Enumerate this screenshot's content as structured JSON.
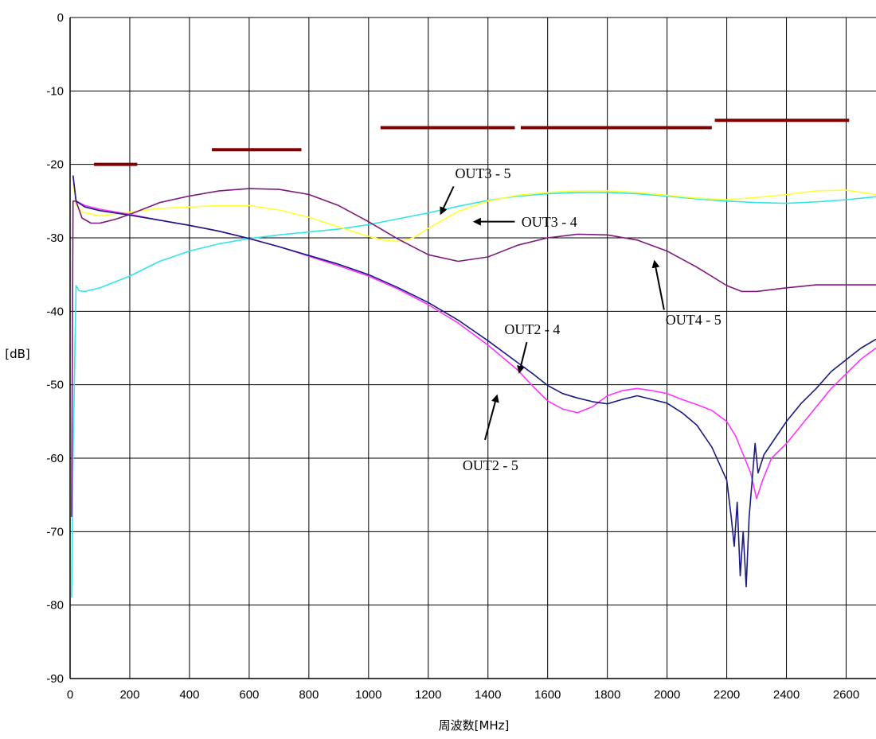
{
  "chart_data": {
    "type": "line",
    "title": "",
    "xlabel": "周波数[MHz]",
    "ylabel": "[dB]",
    "xlim": [
      0,
      2700
    ],
    "ylim": [
      -90,
      0
    ],
    "x_ticks": [
      0,
      200,
      400,
      600,
      800,
      1000,
      1200,
      1400,
      1600,
      1800,
      2000,
      2200,
      2400,
      2600
    ],
    "y_ticks": [
      0,
      -10,
      -20,
      -30,
      -40,
      -50,
      -60,
      -70,
      -80,
      -90
    ],
    "grid": true,
    "legend": "none",
    "series": [
      {
        "name": "OUT3 - 5",
        "color": "#33e6e6",
        "x": [
          5,
          10,
          20,
          30,
          50,
          100,
          200,
          300,
          400,
          500,
          600,
          700,
          800,
          900,
          1000,
          1100,
          1200,
          1300,
          1400,
          1500,
          1600,
          1700,
          1800,
          1900,
          2000,
          2100,
          2200,
          2300,
          2400,
          2500,
          2600,
          2700
        ],
        "y": [
          -79,
          -60,
          -36.5,
          -37.2,
          -37.3,
          -36.8,
          -35.2,
          -33.2,
          -31.8,
          -30.8,
          -30.1,
          -29.6,
          -29.2,
          -28.8,
          -28.2,
          -27.4,
          -26.6,
          -25.7,
          -24.9,
          -24.3,
          -24,
          -23.8,
          -23.8,
          -24,
          -24.3,
          -24.7,
          -25,
          -25.2,
          -25.3,
          -25.1,
          -24.8,
          -24.4
        ]
      },
      {
        "name": "OUT3 - 4",
        "color": "#ffff33",
        "x": [
          10,
          20,
          40,
          100,
          150,
          200,
          300,
          400,
          500,
          600,
          700,
          800,
          900,
          1000,
          1050,
          1100,
          1150,
          1200,
          1300,
          1400,
          1500,
          1600,
          1700,
          1800,
          1900,
          2000,
          2100,
          2200,
          2300,
          2400,
          2500,
          2600,
          2700
        ],
        "y": [
          -22.5,
          -25.5,
          -26.5,
          -27,
          -26.8,
          -26.5,
          -26,
          -25.8,
          -25.6,
          -25.6,
          -26.2,
          -27.2,
          -28.5,
          -29.8,
          -30.3,
          -30.5,
          -30,
          -28.7,
          -26.4,
          -25,
          -24.2,
          -23.8,
          -23.6,
          -23.6,
          -23.8,
          -24.2,
          -24.6,
          -24.8,
          -24.5,
          -24.1,
          -23.6,
          -23.5,
          -24.1
        ]
      },
      {
        "name": "OUT4 - 5",
        "color": "#7d1a7d",
        "x": [
          5,
          10,
          20,
          40,
          70,
          100,
          150,
          200,
          300,
          400,
          500,
          600,
          700,
          800,
          900,
          1000,
          1100,
          1200,
          1300,
          1400,
          1500,
          1600,
          1700,
          1800,
          1900,
          2000,
          2100,
          2200,
          2250,
          2300,
          2400,
          2500,
          2600,
          2700
        ],
        "y": [
          -68,
          -25,
          -25,
          -27.3,
          -28,
          -28,
          -27.5,
          -26.8,
          -25.2,
          -24.3,
          -23.6,
          -23.3,
          -23.4,
          -24.1,
          -25.6,
          -27.8,
          -30.2,
          -32.3,
          -33.2,
          -32.6,
          -31,
          -30,
          -29.5,
          -29.6,
          -30.3,
          -31.8,
          -34,
          -36.5,
          -37.3,
          -37.3,
          -36.8,
          -36.4,
          -36.4,
          -36.4
        ]
      },
      {
        "name": "OUT2 - 4",
        "color": "#1a1a80",
        "x": [
          10,
          20,
          50,
          100,
          200,
          300,
          400,
          500,
          600,
          700,
          800,
          900,
          1000,
          1100,
          1200,
          1300,
          1400,
          1500,
          1550,
          1600,
          1650,
          1700,
          1750,
          1800,
          1850,
          1900,
          1950,
          2000,
          2050,
          2100,
          2150,
          2200,
          2215,
          2225,
          2235,
          2245,
          2255,
          2265,
          2275,
          2285,
          2295,
          2305,
          2325,
          2350,
          2400,
          2450,
          2500,
          2550,
          2600,
          2650,
          2700
        ],
        "y": [
          -21.5,
          -25,
          -25.8,
          -26.3,
          -26.9,
          -27.6,
          -28.3,
          -29.1,
          -30.1,
          -31.2,
          -32.4,
          -33.6,
          -35,
          -36.8,
          -38.8,
          -41.2,
          -44,
          -47,
          -48.5,
          -50.1,
          -51.2,
          -51.8,
          -52.3,
          -52.6,
          -52,
          -51.5,
          -52,
          -52.5,
          -53.8,
          -55.5,
          -58.5,
          -63,
          -68,
          -72,
          -66,
          -76,
          -70,
          -77.5,
          -68,
          -63,
          -58,
          -62,
          -59.5,
          -58,
          -55,
          -52.5,
          -50.5,
          -48.2,
          -46.6,
          -45,
          -43.8
        ]
      },
      {
        "name": "OUT2 - 5",
        "color": "#ff33ff",
        "x": [
          10,
          20,
          50,
          100,
          200,
          300,
          400,
          500,
          600,
          700,
          800,
          900,
          1000,
          1100,
          1200,
          1300,
          1400,
          1500,
          1550,
          1600,
          1650,
          1700,
          1750,
          1800,
          1850,
          1900,
          1950,
          2000,
          2050,
          2100,
          2150,
          2200,
          2230,
          2260,
          2280,
          2300,
          2320,
          2350,
          2400,
          2450,
          2500,
          2550,
          2600,
          2650,
          2700
        ],
        "y": [
          -21.5,
          -25,
          -25.6,
          -26.1,
          -26.8,
          -27.6,
          -28.3,
          -29.1,
          -30.1,
          -31.2,
          -32.5,
          -33.8,
          -35.2,
          -37,
          -39.1,
          -41.6,
          -44.6,
          -48,
          -50.2,
          -52.2,
          -53.3,
          -53.8,
          -53,
          -51.5,
          -50.8,
          -50.5,
          -50.8,
          -51.2,
          -52,
          -52.7,
          -53.5,
          -55,
          -57,
          -60,
          -62,
          -65.5,
          -63,
          -60,
          -58,
          -55.5,
          -53,
          -50.5,
          -48.5,
          -46.5,
          -45
        ]
      }
    ],
    "spec_limits": [
      {
        "x": [
          80,
          225
        ],
        "y": -20
      },
      {
        "x": [
          475,
          775
        ],
        "y": -18
      },
      {
        "x": [
          1040,
          1490
        ],
        "y": -15
      },
      {
        "x": [
          1510,
          2150
        ],
        "y": -15
      },
      {
        "x": [
          2160,
          2610
        ],
        "y": -14
      }
    ],
    "spec_color": "#800000",
    "annotations": [
      {
        "text": "OUT3 - 5",
        "label_x": 1290,
        "label_y": -21.9,
        "arrow_from": [
          1285,
          -23
        ],
        "arrow_to": [
          1242,
          -26.7
        ]
      },
      {
        "text": "OUT3 - 4",
        "label_x": 1512,
        "label_y": -28.5,
        "arrow_from": [
          1490,
          -27.8
        ],
        "arrow_to": [
          1355,
          -27.8
        ]
      },
      {
        "text": "OUT4 - 5",
        "label_x": 1995,
        "label_y": -41.8,
        "arrow_from": [
          1990,
          -39.8
        ],
        "arrow_to": [
          1958,
          -33.2
        ]
      },
      {
        "text": "OUT2 - 4",
        "label_x": 1455,
        "label_y": -43.1,
        "arrow_from": [
          1530,
          -44.2
        ],
        "arrow_to": [
          1505,
          -48.3
        ]
      },
      {
        "text": "OUT2 - 5",
        "label_x": 1315,
        "label_y": -61.6,
        "arrow_from": [
          1390,
          -57.5
        ],
        "arrow_to": [
          1430,
          -51.5
        ]
      }
    ]
  }
}
